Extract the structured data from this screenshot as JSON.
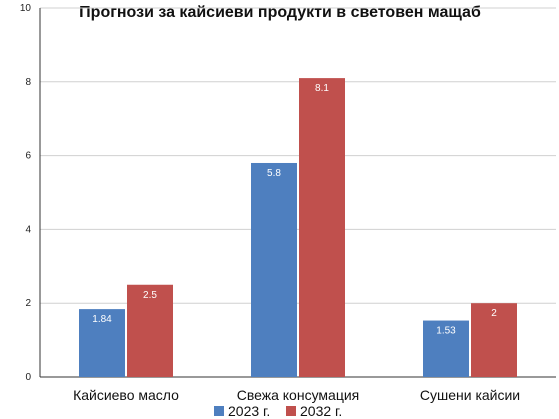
{
  "chart_data": {
    "type": "bar",
    "title": "Прогнози за кайсиеви продукти в световен мащаб",
    "categories": [
      "Кайсиево масло",
      "Свежа консумация",
      "Сушени кайсии"
    ],
    "series": [
      {
        "name": "2023 г.",
        "color": "#4e7fbf",
        "values": [
          1.84,
          5.8,
          1.53
        ]
      },
      {
        "name": "2032 г.",
        "color": "#c0504d",
        "values": [
          2.5,
          8.1,
          2
        ]
      }
    ],
    "data_labels": [
      [
        "1.84",
        "5.8",
        "1.53"
      ],
      [
        "2.5",
        "8.1",
        "2"
      ]
    ],
    "ylim": [
      0,
      10
    ],
    "yticks": [
      0,
      2,
      4,
      6,
      8,
      10
    ],
    "grid": true,
    "legend_position": "bottom"
  }
}
